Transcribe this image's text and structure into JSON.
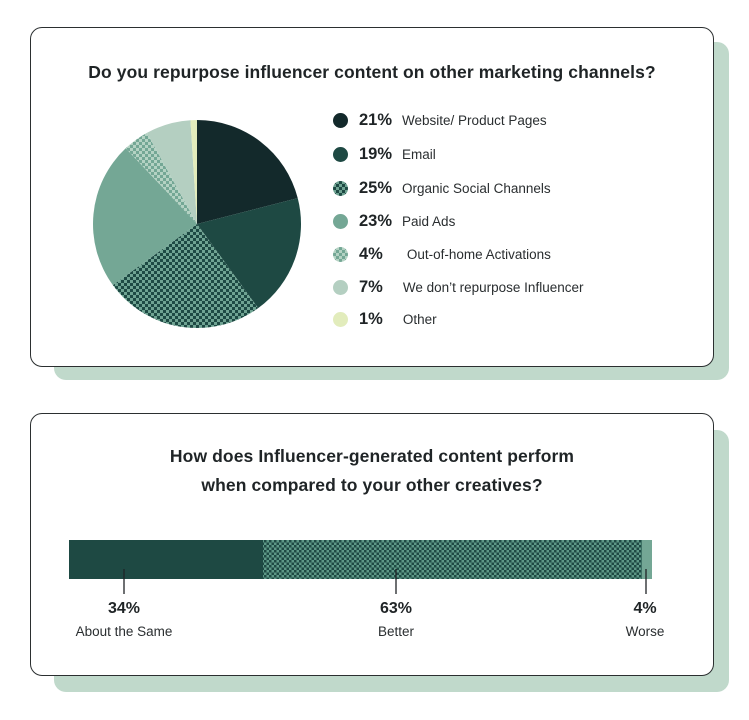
{
  "colors": {
    "shadow": "#c0d9cb",
    "border": "#2b2f30",
    "website": "#13292b",
    "email": "#1e4943",
    "organic_dark": "#1e4a44",
    "organic_light": "#6fa392",
    "paid": "#74a795",
    "ooh_dark": "#74a795",
    "ooh_light": "#b4d2c3",
    "dont": "#b4cfc1",
    "other": "#e2ecbc",
    "bar_same": "#1e4943",
    "bar_better_dark": "#1e4a44",
    "bar_better_light": "#5d9886",
    "bar_worse": "#74a795"
  },
  "card1": {
    "title": "Do you repurpose influencer content on other marketing channels?"
  },
  "card2": {
    "title_line1": "How does Influencer-generated content perform",
    "title_line2": "when compared to your other creatives?"
  },
  "legend": [
    {
      "pct": "21%",
      "label": "Website/ Product Pages"
    },
    {
      "pct": "19%",
      "label": "Email"
    },
    {
      "pct": "25%",
      "label": "Organic Social Channels"
    },
    {
      "pct": "23%",
      "label": "Paid Ads"
    },
    {
      "pct": "4%",
      "label": "Out-of-home Activations"
    },
    {
      "pct": "7%",
      "label": "We don’t repurpose Influencer"
    },
    {
      "pct": "1%",
      "label": "Other"
    }
  ],
  "bar_labels": [
    {
      "pct": "34%",
      "label": "About the Same"
    },
    {
      "pct": "63%",
      "label": "Better"
    },
    {
      "pct": "4%",
      "label": "Worse"
    }
  ],
  "chart_data": [
    {
      "type": "pie",
      "title": "Do you repurpose influencer content on other marketing channels?",
      "categories": [
        "Website/ Product Pages",
        "Email",
        "Organic Social Channels",
        "Paid Ads",
        "Out-of-home Activations",
        "We don’t repurpose Influencer",
        "Other"
      ],
      "values": [
        21,
        19,
        25,
        23,
        4,
        7,
        1
      ],
      "unit": "%",
      "start_angle": "12 o'clock",
      "direction": "clockwise",
      "legend_position": "right"
    },
    {
      "type": "bar",
      "orientation": "horizontal-stacked",
      "title": "How does Influencer-generated content perform when compared to your other creatives?",
      "categories": [
        "About the Same",
        "Better",
        "Worse"
      ],
      "values": [
        34,
        63,
        4
      ],
      "unit": "%",
      "grid": false,
      "legend_position": "below (labels under segments)"
    }
  ]
}
